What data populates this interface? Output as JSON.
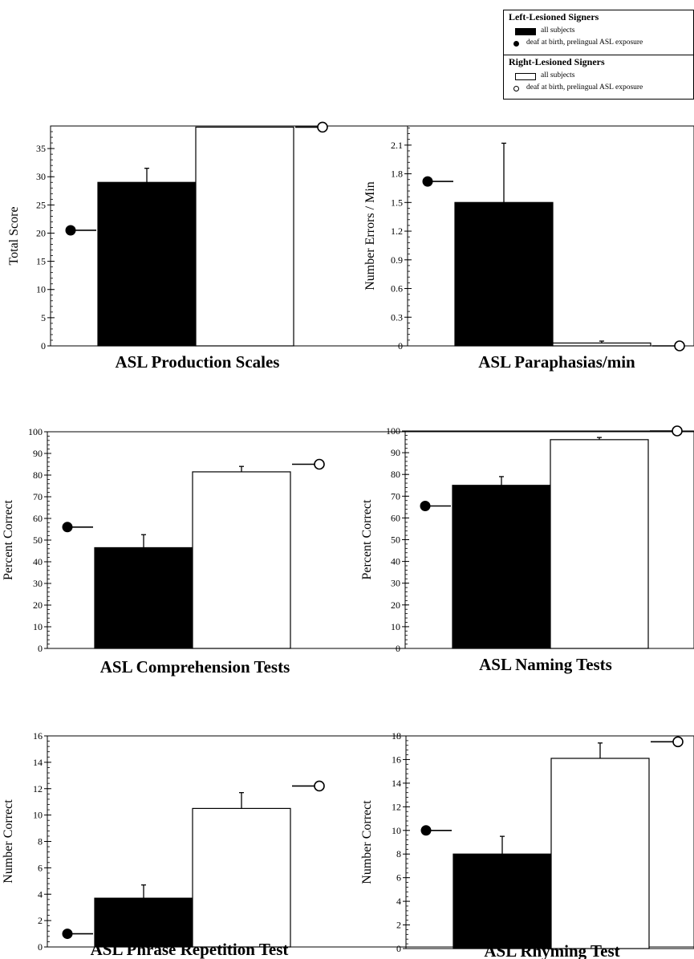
{
  "legend": {
    "left_title": "Left-Lesioned Signers",
    "left_all": "all subjects",
    "left_deaf": "deaf at birth, prelingual ASL exposure",
    "right_title": "Right-Lesioned Signers",
    "right_all": "all subjects",
    "right_deaf": "deaf at birth, prelingual ASL exposure",
    "left_color": "#000000",
    "right_color": "#ffffff"
  },
  "chart_data": [
    {
      "type": "bar",
      "title": "ASL Production Scales",
      "ylabel": "Total Score",
      "ylim": [
        0,
        39
      ],
      "yticks": [
        0,
        5,
        10,
        15,
        20,
        25,
        30,
        35
      ],
      "yticklabels": [
        "0",
        "5",
        "10",
        "15",
        "20",
        "25",
        "30",
        "35"
      ],
      "series": [
        {
          "name": "Left-Lesioned Signers",
          "all_subjects": 29,
          "error": 2.5,
          "deaf_at_birth": 20.5
        },
        {
          "name": "Right-Lesioned Signers",
          "all_subjects": 38.8,
          "error": 0,
          "deaf_at_birth": 38.8
        }
      ]
    },
    {
      "type": "bar",
      "title": "ASL Paraphasias/min",
      "ylabel": "Number Errors / Min",
      "ylim": [
        0,
        2.3
      ],
      "yticks": [
        0,
        0.3,
        0.6,
        0.9,
        1.2,
        1.5,
        1.8,
        2.1
      ],
      "yticklabels": [
        "0",
        "0.3",
        "0.6",
        "0.9",
        "1.2",
        "1.5",
        "1.8",
        "2.1"
      ],
      "series": [
        {
          "name": "Left-Lesioned Signers",
          "all_subjects": 1.5,
          "error": 0.62,
          "deaf_at_birth": 1.72
        },
        {
          "name": "Right-Lesioned Signers",
          "all_subjects": 0.03,
          "error": 0.02,
          "deaf_at_birth": 0
        }
      ]
    },
    {
      "type": "bar",
      "title": "ASL Comprehension Tests",
      "ylabel": "Percent Correct",
      "ylim": [
        0,
        100
      ],
      "yticks": [
        0,
        10,
        20,
        30,
        40,
        50,
        60,
        70,
        80,
        90,
        100
      ],
      "yticklabels": [
        "0",
        "10",
        "20",
        "30",
        "40",
        "50",
        "60",
        "70",
        "80",
        "90",
        "100"
      ],
      "series": [
        {
          "name": "Left-Lesioned Signers",
          "all_subjects": 46.5,
          "error": 6,
          "deaf_at_birth": 56
        },
        {
          "name": "Right-Lesioned Signers",
          "all_subjects": 81.5,
          "error": 2.5,
          "deaf_at_birth": 85
        }
      ]
    },
    {
      "type": "bar",
      "title": "ASL Naming Tests",
      "ylabel": "Percent Correct",
      "ylim": [
        0,
        100
      ],
      "yticks": [
        0,
        10,
        20,
        30,
        40,
        50,
        60,
        70,
        80,
        90,
        100
      ],
      "yticklabels": [
        "0",
        "10",
        "20",
        "30",
        "40",
        "50",
        "60",
        "70",
        "80",
        "90",
        "100"
      ],
      "series": [
        {
          "name": "Left-Lesioned Signers",
          "all_subjects": 75,
          "error": 4,
          "deaf_at_birth": 65.5
        },
        {
          "name": "Right-Lesioned Signers",
          "all_subjects": 96,
          "error": 1,
          "deaf_at_birth": 100
        }
      ]
    },
    {
      "type": "bar",
      "title": "ASL Phrase Repetition Test",
      "ylabel": "Number Correct",
      "ylim": [
        0,
        16
      ],
      "yticks": [
        0,
        2,
        4,
        6,
        8,
        10,
        12,
        14,
        16
      ],
      "yticklabels": [
        "0",
        "2",
        "4",
        "6",
        "8",
        "10",
        "12",
        "14",
        "16"
      ],
      "series": [
        {
          "name": "Left-Lesioned Signers",
          "all_subjects": 3.7,
          "error": 1,
          "deaf_at_birth": 1
        },
        {
          "name": "Right-Lesioned Signers",
          "all_subjects": 10.5,
          "error": 1.2,
          "deaf_at_birth": 12.2
        }
      ]
    },
    {
      "type": "bar",
      "title": "ASL Rhyming Test",
      "ylabel": "Number Correct",
      "ylim": [
        0,
        18
      ],
      "yticks": [
        0,
        2,
        4,
        6,
        8,
        10,
        12,
        14,
        16,
        18
      ],
      "yticklabels": [
        "0",
        "2",
        "4",
        "6",
        "8",
        "10",
        "12",
        "14",
        "16",
        "18"
      ],
      "series": [
        {
          "name": "Left-Lesioned Signers",
          "all_subjects": 8,
          "error": 1.5,
          "deaf_at_birth": 10
        },
        {
          "name": "Right-Lesioned Signers",
          "all_subjects": 16.1,
          "error": 1.3,
          "deaf_at_birth": 17.5
        }
      ]
    }
  ]
}
